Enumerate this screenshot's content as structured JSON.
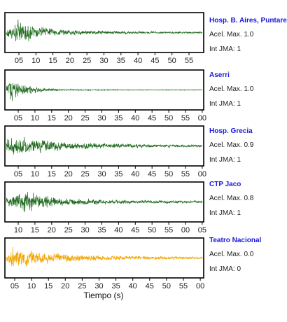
{
  "chart_data": {
    "type": "line",
    "xlabel": "Tiempo (s)",
    "grid": false,
    "panels": [
      {
        "station": "Hosp. B. Aires, Puntare",
        "acel_label": "Acel. Max. 1.0",
        "jma_label": "Int JMA: 1",
        "color": "#1f6b1f",
        "tick_labels": [
          "05",
          "10",
          "15",
          "20",
          "25",
          "30",
          "35",
          "40",
          "45",
          "50",
          "55"
        ],
        "envelope": {
          "t": [
            0,
            3,
            6,
            10,
            15,
            20,
            30,
            40,
            50,
            58
          ],
          "amp": [
            0.3,
            0.95,
            0.75,
            0.5,
            0.3,
            0.2,
            0.14,
            0.1,
            0.08,
            0.07
          ]
        }
      },
      {
        "station": "Aserri",
        "acel_label": "Acel. Max. 1.0",
        "jma_label": "Int JMA: 1",
        "color": "#1f6b1f",
        "tick_labels": [
          "05",
          "10",
          "15",
          "20",
          "25",
          "30",
          "35",
          "40",
          "45",
          "50",
          "55",
          "00"
        ],
        "envelope": {
          "t": [
            0,
            1,
            3,
            6,
            10,
            15,
            20,
            30,
            40,
            50,
            60
          ],
          "amp": [
            0.2,
            0.95,
            0.7,
            0.45,
            0.2,
            0.1,
            0.06,
            0.04,
            0.03,
            0.03,
            0.03
          ]
        }
      },
      {
        "station": "Hosp. Grecia",
        "acel_label": "Acel. Max. 0.9",
        "jma_label": "Int JMA: 1",
        "color": "#1f6b1f",
        "tick_labels": [
          "05",
          "10",
          "15",
          "20",
          "25",
          "30",
          "35",
          "40",
          "45",
          "50",
          "55",
          "00"
        ],
        "envelope": {
          "t": [
            0,
            2,
            5,
            10,
            15,
            20,
            30,
            40,
            50,
            60
          ],
          "amp": [
            0.5,
            0.95,
            0.8,
            0.55,
            0.4,
            0.3,
            0.22,
            0.16,
            0.12,
            0.1
          ]
        }
      },
      {
        "station": "CTP Jaco",
        "acel_label": "Acel. Max. 0.8",
        "jma_label": "Int JMA: 1",
        "color": "#1f6b1f",
        "tick_labels": [
          "10",
          "15",
          "20",
          "25",
          "30",
          "35",
          "40",
          "45",
          "50",
          "55",
          "00",
          "05"
        ],
        "envelope": {
          "t": [
            0,
            3,
            6,
            10,
            15,
            20,
            30,
            40,
            50,
            60
          ],
          "amp": [
            0.35,
            0.75,
            0.95,
            0.6,
            0.4,
            0.3,
            0.2,
            0.15,
            0.12,
            0.1
          ]
        }
      },
      {
        "station": "Teatro Nacional",
        "acel_label": "Acel. Max. 0.0",
        "jma_label": "Int JMA: 0",
        "color": "#f2a500",
        "tick_labels": [
          "05",
          "10",
          "15",
          "20",
          "25",
          "30",
          "35",
          "40",
          "45",
          "50",
          "55",
          "00"
        ],
        "envelope": {
          "t": [
            0,
            2,
            5,
            10,
            15,
            20,
            30,
            40,
            50,
            60
          ],
          "amp": [
            0.4,
            0.95,
            0.7,
            0.5,
            0.38,
            0.3,
            0.22,
            0.17,
            0.14,
            0.12
          ]
        }
      }
    ]
  }
}
